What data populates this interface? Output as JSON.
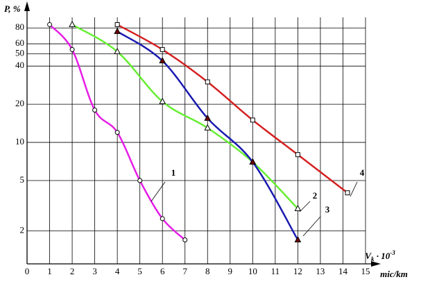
{
  "chart_data": {
    "type": "line",
    "y_label": "P, %",
    "x_label": {
      "main": "V",
      "sub": "k",
      "rest": " · 10",
      "sup": "-3"
    },
    "x_unit": "mic/km",
    "xlim": [
      0,
      15
    ],
    "xticks": [
      0,
      1,
      2,
      3,
      4,
      5,
      6,
      7,
      8,
      9,
      10,
      11,
      12,
      13,
      14,
      15
    ],
    "ylim": [
      1.1,
      110
    ],
    "yticks": [
      2,
      5,
      10,
      20,
      40,
      50,
      60,
      80
    ],
    "yscale": "log",
    "grid": true,
    "series": [
      {
        "name": "1",
        "color": "#e61ee6",
        "marker": "circle",
        "x": [
          1,
          2,
          3,
          4,
          5,
          6,
          7
        ],
        "values": [
          85,
          54,
          18,
          12,
          5,
          2.5,
          1.7
        ]
      },
      {
        "name": "2",
        "color": "#66ee33",
        "marker": "triangle",
        "x": [
          2,
          4,
          6,
          8,
          10,
          12
        ],
        "values": [
          85,
          52,
          21,
          13,
          7,
          3
        ]
      },
      {
        "name": "3",
        "color": "#1a1ab0",
        "marker": "triangle-filled",
        "x": [
          4,
          6,
          8,
          10,
          12
        ],
        "values": [
          75,
          44,
          15.5,
          7,
          1.7
        ]
      },
      {
        "name": "4",
        "color": "#d42020",
        "marker": "square",
        "x": [
          4,
          6,
          8,
          10,
          12,
          14.2
        ],
        "values": [
          85,
          54,
          30,
          15,
          8,
          4
        ]
      }
    ]
  }
}
